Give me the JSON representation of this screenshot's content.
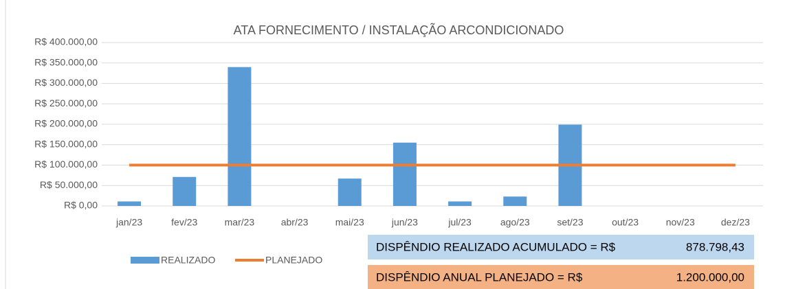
{
  "chart_data": {
    "type": "bar",
    "title": "ATA FORNECIMENTO / INSTALAÇÃO ARCONDICIONADO",
    "categories": [
      "jan/23",
      "fev/23",
      "mar/23",
      "abr/23",
      "mai/23",
      "jun/23",
      "jul/23",
      "ago/23",
      "set/23",
      "out/23",
      "nov/23",
      "dez/23"
    ],
    "series": [
      {
        "name": "REALIZADO",
        "type": "bar",
        "color": "#5b9bd5",
        "values": [
          11000,
          71000,
          340000,
          0,
          67000,
          155000,
          11000,
          23000,
          199000,
          0,
          0,
          0
        ]
      },
      {
        "name": "PLANEJADO",
        "type": "line",
        "color": "#ed7d31",
        "values": [
          100000,
          100000,
          100000,
          100000,
          100000,
          100000,
          100000,
          100000,
          100000,
          100000,
          100000,
          100000
        ]
      }
    ],
    "ylim": [
      0,
      400000
    ],
    "yticks": [
      {
        "value": 0,
        "label": "R$ 0,00"
      },
      {
        "value": 50000,
        "label": "R$ 50.000,00"
      },
      {
        "value": 100000,
        "label": "R$ 100.000,00"
      },
      {
        "value": 150000,
        "label": "R$ 150.000,00"
      },
      {
        "value": 200000,
        "label": "R$ 200.000,00"
      },
      {
        "value": 250000,
        "label": "R$ 250.000,00"
      },
      {
        "value": 300000,
        "label": "R$ 300.000,00"
      },
      {
        "value": 350000,
        "label": "R$ 350.000,00"
      },
      {
        "value": 400000,
        "label": "R$ 400.000,00"
      }
    ],
    "grid": true,
    "legend": "bottom",
    "annotations": [
      {
        "text": "DISPÊNDIO REALIZADO ACUMULADO = R$",
        "amount": "878.798,43",
        "color": "#bdd7ee"
      },
      {
        "text": "DISPÊNDIO ANUAL PLANEJADO = R$",
        "amount": "1.200.000,00",
        "color": "#f4b183"
      }
    ]
  }
}
